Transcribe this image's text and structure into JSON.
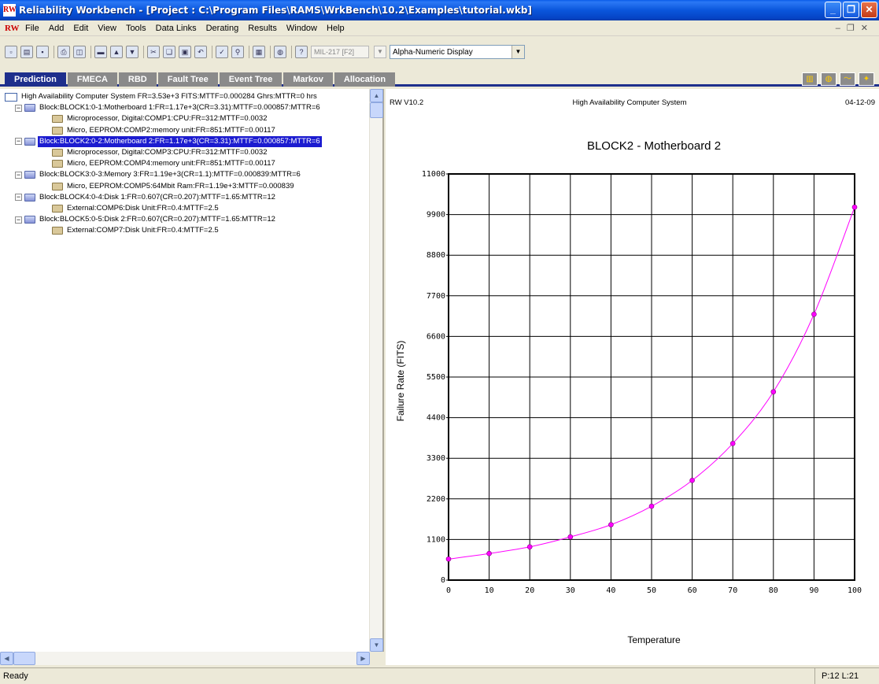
{
  "window": {
    "title": "Reliability Workbench - [Project : C:\\Program Files\\RAMS\\WrkBench\\10.2\\Examples\\tutorial.wkb]",
    "app_icon_text": "RW"
  },
  "menu": [
    "File",
    "Add",
    "Edit",
    "View",
    "Tools",
    "Data Links",
    "Derating",
    "Results",
    "Window",
    "Help"
  ],
  "toolbar": {
    "standard_field": "MIL-217 [F2]",
    "display_mode": "Alpha-Numeric Display",
    "icons": [
      "new-icon",
      "open-icon",
      "save-icon",
      "print-icon",
      "print-preview-icon",
      "insert-icon",
      "insert-above-icon",
      "insert-below-icon",
      "cut-icon",
      "copy-icon",
      "paste-icon",
      "undo-icon",
      "spellcheck-icon",
      "find-icon",
      "properties-icon",
      "globe-icon",
      "help-icon"
    ]
  },
  "tabs": [
    "Prediction",
    "FMECA",
    "RBD",
    "Fault Tree",
    "Event Tree",
    "Markov",
    "Allocation"
  ],
  "active_tab": "Prediction",
  "tree": [
    {
      "level": 0,
      "type": "system",
      "label": "High Availability Computer System FR=3.53e+3 FITS:MTTF=0.000284 Ghrs:MTTR=0 hrs",
      "expander": false
    },
    {
      "level": 1,
      "type": "block",
      "label": "Block:BLOCK1:0-1:Motherboard 1:FR=1.17e+3(CR=3.31):MTTF=0.000857:MTTR=6",
      "expander": true
    },
    {
      "level": 2,
      "type": "comp",
      "label": "Microprocessor, Digital:COMP1:CPU:FR=312:MTTF=0.0032",
      "expander": false
    },
    {
      "level": 2,
      "type": "comp",
      "label": "Micro, EEPROM:COMP2:memory unit:FR=851:MTTF=0.00117",
      "expander": false
    },
    {
      "level": 1,
      "type": "block",
      "label": "Block:BLOCK2:0-2:Motherboard 2:FR=1.17e+3(CR=3.31):MTTF=0.000857:MTTR=6",
      "expander": true,
      "selected": true
    },
    {
      "level": 2,
      "type": "comp",
      "label": "Microprocessor, Digital:COMP3:CPU:FR=312:MTTF=0.0032",
      "expander": false
    },
    {
      "level": 2,
      "type": "comp",
      "label": "Micro, EEPROM:COMP4:memory unit:FR=851:MTTF=0.00117",
      "expander": false
    },
    {
      "level": 1,
      "type": "block",
      "label": "Block:BLOCK3:0-3:Memory 3:FR=1.19e+3(CR=1.1):MTTF=0.000839:MTTR=6",
      "expander": true
    },
    {
      "level": 2,
      "type": "comp",
      "label": "Micro, EEPROM:COMP5:64Mbit Ram:FR=1.19e+3:MTTF=0.000839",
      "expander": false
    },
    {
      "level": 1,
      "type": "block",
      "label": "Block:BLOCK4:0-4:Disk 1:FR=0.607(CR=0.207):MTTF=1.65:MTTR=12",
      "expander": true
    },
    {
      "level": 2,
      "type": "comp",
      "label": "External:COMP6:Disk Unit:FR=0.4:MTTF=2.5",
      "expander": false
    },
    {
      "level": 1,
      "type": "block",
      "label": "Block:BLOCK5:0-5:Disk 2:FR=0.607(CR=0.207):MTTF=1.65:MTTR=12",
      "expander": true
    },
    {
      "level": 2,
      "type": "comp",
      "label": "External:COMP7:Disk Unit:FR=0.4:MTTF=2.5",
      "expander": false
    }
  ],
  "report_header": {
    "version": "RW V10.2",
    "project": "High Availability Computer System",
    "date": "04-12-09"
  },
  "chart_data": {
    "type": "line",
    "title": "BLOCK2 - Motherboard 2",
    "xlabel": "Temperature",
    "ylabel": "Failure Rate (FITS)",
    "xlim": [
      0,
      100
    ],
    "ylim": [
      0,
      11000
    ],
    "xticks": [
      0,
      10,
      20,
      30,
      40,
      50,
      60,
      70,
      80,
      90,
      100
    ],
    "yticks": [
      0,
      1100,
      2200,
      3300,
      4400,
      5500,
      6600,
      7700,
      8800,
      9900,
      11000
    ],
    "grid": true,
    "series": [
      {
        "color": "#ff00ff",
        "x": [
          0,
          10,
          20,
          30,
          40,
          50,
          60,
          70,
          80,
          90,
          100
        ],
        "y": [
          570,
          720,
          900,
          1170,
          1500,
          2000,
          2700,
          3700,
          5100,
          7200,
          10100
        ]
      }
    ]
  },
  "status": {
    "text": "Ready",
    "position": "P:12 L:21"
  }
}
